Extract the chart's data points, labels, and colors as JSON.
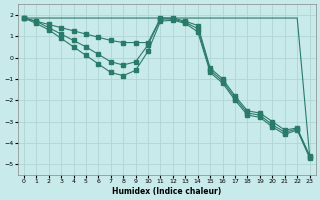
{
  "xlabel": "Humidex (Indice chaleur)",
  "xlim": [
    -0.5,
    23.5
  ],
  "ylim": [
    -5.5,
    2.5
  ],
  "yticks": [
    -5,
    -4,
    -3,
    -2,
    -1,
    0,
    1,
    2
  ],
  "xticks": [
    0,
    1,
    2,
    3,
    4,
    5,
    6,
    7,
    8,
    9,
    10,
    11,
    12,
    13,
    14,
    15,
    16,
    17,
    18,
    19,
    20,
    21,
    22,
    23
  ],
  "bg_color": "#c9eaea",
  "grid_color": "#b0d4d4",
  "line_color": "#2a7a6a",
  "line1_x": [
    0,
    1,
    2,
    3,
    4,
    5,
    6,
    7,
    8,
    9,
    10,
    11,
    12,
    13,
    14,
    15,
    16,
    17,
    18,
    19,
    20,
    21,
    22,
    23
  ],
  "line1_y": [
    1.85,
    1.85,
    1.85,
    1.85,
    1.85,
    1.85,
    1.85,
    1.85,
    1.85,
    1.85,
    1.85,
    1.85,
    1.85,
    1.85,
    1.85,
    1.85,
    1.85,
    1.85,
    1.85,
    1.85,
    1.85,
    1.85,
    1.85,
    -4.6
  ],
  "line2_x": [
    0,
    1,
    2,
    3,
    4,
    5,
    6,
    7,
    8,
    9,
    10,
    11,
    12,
    13,
    14,
    15,
    16,
    17,
    18,
    19,
    20,
    21,
    22,
    23
  ],
  "line2_y": [
    1.85,
    1.7,
    1.55,
    1.4,
    1.25,
    1.1,
    0.95,
    0.8,
    0.7,
    0.7,
    0.7,
    1.85,
    1.85,
    1.7,
    1.5,
    -0.5,
    -1.0,
    -1.8,
    -2.5,
    -2.6,
    -3.0,
    -3.4,
    -3.3,
    -4.6
  ],
  "line3_x": [
    0,
    1,
    2,
    3,
    4,
    5,
    6,
    7,
    8,
    9,
    10,
    11,
    12,
    13,
    14,
    15,
    16,
    17,
    18,
    19,
    20,
    21,
    22,
    23
  ],
  "line3_y": [
    1.85,
    1.7,
    1.4,
    1.1,
    0.8,
    0.5,
    0.15,
    -0.2,
    -0.35,
    -0.2,
    0.6,
    1.8,
    1.8,
    1.65,
    1.35,
    -0.6,
    -1.1,
    -1.9,
    -2.6,
    -2.7,
    -3.15,
    -3.5,
    -3.35,
    -4.65
  ],
  "line4_x": [
    0,
    1,
    2,
    3,
    4,
    5,
    6,
    7,
    8,
    9,
    10,
    11,
    12,
    13,
    14,
    15,
    16,
    17,
    18,
    19,
    20,
    21,
    22,
    23
  ],
  "line4_y": [
    1.85,
    1.6,
    1.3,
    0.9,
    0.5,
    0.1,
    -0.3,
    -0.7,
    -0.85,
    -0.6,
    0.3,
    1.7,
    1.75,
    1.6,
    1.2,
    -0.7,
    -1.2,
    -2.0,
    -2.7,
    -2.8,
    -3.25,
    -3.6,
    -3.4,
    -4.7
  ]
}
